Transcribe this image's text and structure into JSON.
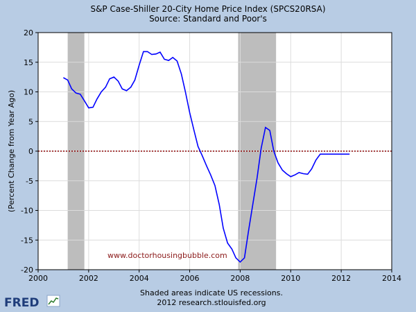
{
  "chart_data": {
    "type": "line",
    "title": "S&P Case-Shiller 20-City Home Price Index (SPCS20RSA)",
    "subtitle": "Source: Standard and Poor's",
    "xlabel": "",
    "ylabel": "(Percent Change from Year Ago)",
    "xlim": [
      2000,
      2014
    ],
    "ylim": [
      -20,
      20
    ],
    "x_ticks": [
      "2000",
      "2002",
      "2004",
      "2006",
      "2008",
      "2010",
      "2012",
      "2014"
    ],
    "y_ticks": [
      "20",
      "15",
      "10",
      "5",
      "0",
      "-5",
      "-10",
      "-15",
      "-20"
    ],
    "grid": true,
    "recessions": [
      {
        "start": 2001.17,
        "end": 2001.83
      },
      {
        "start": 2007.92,
        "end": 2009.42
      }
    ],
    "zero_line": {
      "value": 0,
      "color": "#8b0000",
      "style": "dotted"
    },
    "series": [
      {
        "color": "#0000ff",
        "x": [
          2001.0,
          2001.17,
          2001.33,
          2001.5,
          2001.67,
          2001.83,
          2002.0,
          2002.17,
          2002.33,
          2002.5,
          2002.67,
          2002.83,
          2003.0,
          2003.17,
          2003.33,
          2003.5,
          2003.67,
          2003.83,
          2004.0,
          2004.17,
          2004.33,
          2004.5,
          2004.67,
          2004.83,
          2005.0,
          2005.17,
          2005.33,
          2005.5,
          2005.67,
          2005.83,
          2006.0,
          2006.17,
          2006.33,
          2006.5,
          2006.67,
          2006.83,
          2007.0,
          2007.17,
          2007.33,
          2007.5,
          2007.67,
          2007.83,
          2008.0,
          2008.17,
          2008.33,
          2008.5,
          2008.67,
          2008.83,
          2009.0,
          2009.17,
          2009.33,
          2009.5,
          2009.67,
          2009.83,
          2010.0,
          2010.17,
          2010.33,
          2010.5,
          2010.67,
          2010.83,
          2011.0,
          2011.17,
          2011.33,
          2011.5,
          2011.67,
          2011.83,
          2012.0,
          2012.17,
          2012.33
        ],
        "values": [
          12.4,
          12.0,
          10.5,
          9.8,
          9.6,
          8.5,
          7.3,
          7.4,
          8.8,
          10.0,
          10.8,
          12.2,
          12.5,
          11.8,
          10.5,
          10.2,
          10.8,
          12.0,
          14.5,
          16.8,
          16.8,
          16.3,
          16.4,
          16.7,
          15.5,
          15.3,
          15.8,
          15.2,
          13.0,
          10.0,
          6.5,
          3.5,
          0.8,
          -0.8,
          -2.5,
          -4.0,
          -5.8,
          -9.0,
          -13.0,
          -15.5,
          -16.5,
          -18.0,
          -18.7,
          -18.0,
          -13.5,
          -9.0,
          -4.5,
          0.5,
          4.0,
          3.5,
          0.0,
          -2.0,
          -3.2,
          -3.8,
          -4.3,
          -4.0,
          -3.6,
          -3.8,
          -3.9,
          -3.0,
          -1.5,
          -0.5,
          -0.5,
          -0.5,
          -0.5,
          -0.5,
          -0.5,
          -0.5,
          -0.5
        ]
      }
    ],
    "annotation": "www.doctorhousingbubble.com"
  },
  "footer": {
    "note": "Shaded areas indicate US recessions.",
    "credit": "2012 research.stlouisfed.org",
    "logo_text": "FRED"
  }
}
